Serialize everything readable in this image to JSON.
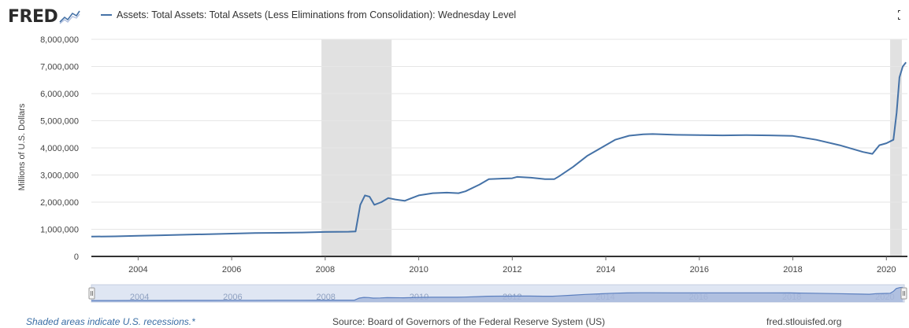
{
  "header": {
    "logo": "FRED",
    "series_title": "Assets: Total Assets: Total Assets (Less Eliminations from Consolidation): Wednesday Level"
  },
  "footer": {
    "recession_note": "Shaded areas indicate U.S. recessions.*",
    "source": "Source: Board of Governors of the Federal Reserve System (US)",
    "site": "fred.stlouisfed.org"
  },
  "colors": {
    "line": "#4572a7",
    "recession": "#e1e1e1",
    "navigator_fill": "#a8b9dc",
    "navigator_line": "#5b7fbf"
  },
  "chart_data": {
    "type": "line",
    "title": "Assets: Total Assets: Total Assets (Less Eliminations from Consolidation): Wednesday Level",
    "ylabel": "Millions of U.S. Dollars",
    "xlabel": "",
    "ylim": [
      0,
      8000000
    ],
    "xlim": [
      2003.0,
      2020.45
    ],
    "y_ticks": [
      0,
      1000000,
      2000000,
      3000000,
      4000000,
      5000000,
      6000000,
      7000000,
      8000000
    ],
    "y_tick_labels": [
      "0",
      "1,000,000",
      "2,000,000",
      "3,000,000",
      "4,000,000",
      "5,000,000",
      "6,000,000",
      "7,000,000",
      "8,000,000"
    ],
    "x_ticks": [
      2004,
      2006,
      2008,
      2010,
      2012,
      2014,
      2016,
      2018,
      2020
    ],
    "x_tick_labels": [
      "2004",
      "2006",
      "2008",
      "2010",
      "2012",
      "2014",
      "2016",
      "2018",
      "2020"
    ],
    "navigator_labels": [
      "2004",
      "2006",
      "2008",
      "2010",
      "2012",
      "2014",
      "2016",
      "2018",
      "2020"
    ],
    "recessions": [
      [
        2007.92,
        2009.42
      ],
      [
        2020.08,
        2020.33
      ]
    ],
    "series": [
      {
        "name": "Total Assets (Wednesday Level)",
        "x": [
          2003.0,
          2003.5,
          2004.0,
          2004.5,
          2005.0,
          2005.5,
          2006.0,
          2006.5,
          2007.0,
          2007.5,
          2008.0,
          2008.5,
          2008.65,
          2008.75,
          2008.85,
          2008.95,
          2009.05,
          2009.2,
          2009.35,
          2009.5,
          2009.7,
          2009.85,
          2010.0,
          2010.3,
          2010.6,
          2010.85,
          2011.0,
          2011.3,
          2011.5,
          2011.8,
          2012.0,
          2012.1,
          2012.4,
          2012.7,
          2012.9,
          2013.0,
          2013.3,
          2013.6,
          2013.9,
          2014.2,
          2014.5,
          2014.8,
          2015.0,
          2015.5,
          2016.0,
          2016.5,
          2017.0,
          2017.5,
          2018.0,
          2018.5,
          2019.0,
          2019.5,
          2019.7,
          2019.85,
          2020.0,
          2020.15,
          2020.22,
          2020.28,
          2020.35,
          2020.42
        ],
        "values": [
          730000,
          740000,
          760000,
          780000,
          800000,
          820000,
          840000,
          860000,
          870000,
          880000,
          900000,
          910000,
          920000,
          1900000,
          2250000,
          2200000,
          1900000,
          2000000,
          2150000,
          2100000,
          2050000,
          2150000,
          2250000,
          2330000,
          2350000,
          2330000,
          2400000,
          2650000,
          2850000,
          2870000,
          2880000,
          2930000,
          2900000,
          2850000,
          2850000,
          2950000,
          3300000,
          3700000,
          4000000,
          4300000,
          4450000,
          4500000,
          4510000,
          4480000,
          4470000,
          4460000,
          4470000,
          4460000,
          4440000,
          4300000,
          4100000,
          3850000,
          3780000,
          4100000,
          4170000,
          4300000,
          5300000,
          6600000,
          7000000,
          7150000
        ]
      }
    ]
  }
}
